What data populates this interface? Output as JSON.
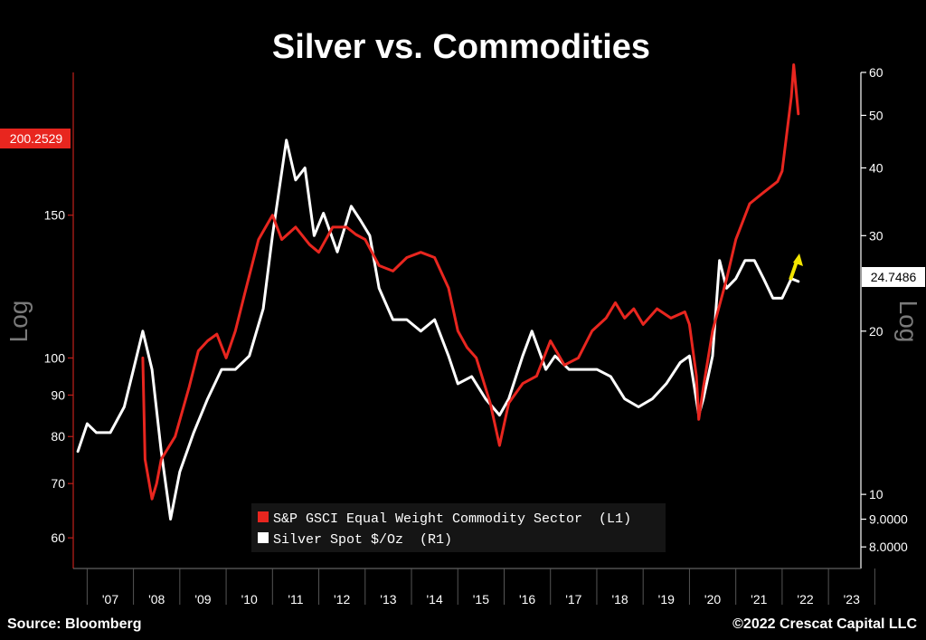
{
  "chart_data": {
    "type": "line",
    "title": "Silver vs. Commodities",
    "source": "Source: Bloomberg",
    "copyright": "©2022 Crescat Capital LLC",
    "left_axis": {
      "label": "Log",
      "scale": "log",
      "range": [
        55,
        225
      ],
      "ticks": [
        {
          "value": 150,
          "label": "150"
        },
        {
          "value": 100,
          "label": "100"
        },
        {
          "value": 90,
          "label": "90"
        },
        {
          "value": 80,
          "label": "80"
        },
        {
          "value": 70,
          "label": "70"
        },
        {
          "value": 60,
          "label": "60"
        }
      ]
    },
    "right_axis": {
      "label": "Log",
      "scale": "log",
      "range": [
        7.3,
        60
      ],
      "ticks": [
        {
          "value": 60,
          "label": "60"
        },
        {
          "value": 50,
          "label": "50"
        },
        {
          "value": 40,
          "label": "40"
        },
        {
          "value": 30,
          "label": "30"
        },
        {
          "value": 20,
          "label": "20"
        },
        {
          "value": 10,
          "label": "10"
        },
        {
          "value": 9,
          "label": "9.0000"
        },
        {
          "value": 8,
          "label": "8.0000"
        }
      ]
    },
    "x_axis": {
      "range": [
        2006.7,
        2023.7
      ],
      "tick_labels": [
        "'07",
        "'08",
        "'09",
        "'10",
        "'11",
        "'12",
        "'13",
        "'14",
        "'15",
        "'16",
        "'17",
        "'18",
        "'19",
        "'20",
        "'21",
        "'22",
        "'23"
      ]
    },
    "last_value_labels": {
      "left": "200.2529",
      "right": "24.7486"
    },
    "legend": {
      "placement": "bottom-center",
      "items": [
        {
          "label": "S&P GSCI Equal Weight Commodity Sector  (L1)",
          "color": "#e8261f"
        },
        {
          "label": "Silver Spot $/Oz  (R1)",
          "color": "#ffffff"
        }
      ]
    },
    "series": [
      {
        "name": "S&P GSCI Equal Weight Commodity Sector  (L1)",
        "axis": "left",
        "color": "#e8261f",
        "points": [
          [
            2008.2,
            100
          ],
          [
            2008.25,
            75
          ],
          [
            2008.4,
            67
          ],
          [
            2008.5,
            70
          ],
          [
            2008.6,
            75
          ],
          [
            2008.9,
            80
          ],
          [
            2009.2,
            92
          ],
          [
            2009.4,
            102
          ],
          [
            2009.6,
            105
          ],
          [
            2009.8,
            107
          ],
          [
            2010.0,
            100
          ],
          [
            2010.2,
            108
          ],
          [
            2010.4,
            120
          ],
          [
            2010.7,
            140
          ],
          [
            2011.0,
            150
          ],
          [
            2011.2,
            140
          ],
          [
            2011.5,
            145
          ],
          [
            2011.8,
            138
          ],
          [
            2012.0,
            135
          ],
          [
            2012.3,
            145
          ],
          [
            2012.6,
            145
          ],
          [
            2012.8,
            142
          ],
          [
            2013.0,
            140
          ],
          [
            2013.3,
            130
          ],
          [
            2013.6,
            128
          ],
          [
            2013.9,
            133
          ],
          [
            2014.2,
            135
          ],
          [
            2014.5,
            133
          ],
          [
            2014.8,
            122
          ],
          [
            2015.0,
            108
          ],
          [
            2015.2,
            103
          ],
          [
            2015.4,
            100
          ],
          [
            2015.7,
            88
          ],
          [
            2015.9,
            78
          ],
          [
            2016.1,
            88
          ],
          [
            2016.4,
            93
          ],
          [
            2016.7,
            95
          ],
          [
            2017.0,
            105
          ],
          [
            2017.3,
            98
          ],
          [
            2017.6,
            100
          ],
          [
            2017.9,
            108
          ],
          [
            2018.2,
            112
          ],
          [
            2018.4,
            117
          ],
          [
            2018.6,
            112
          ],
          [
            2018.8,
            115
          ],
          [
            2019.0,
            110
          ],
          [
            2019.3,
            115
          ],
          [
            2019.6,
            112
          ],
          [
            2019.9,
            114
          ],
          [
            2020.0,
            110
          ],
          [
            2020.15,
            95
          ],
          [
            2020.2,
            84
          ],
          [
            2020.3,
            92
          ],
          [
            2020.5,
            108
          ],
          [
            2020.8,
            125
          ],
          [
            2021.0,
            140
          ],
          [
            2021.3,
            155
          ],
          [
            2021.6,
            160
          ],
          [
            2021.9,
            165
          ],
          [
            2022.0,
            170
          ],
          [
            2022.2,
            210
          ],
          [
            2022.25,
            230
          ],
          [
            2022.35,
            200
          ]
        ]
      },
      {
        "name": "Silver Spot $/Oz  (R1)",
        "axis": "right",
        "color": "#ffffff",
        "points": [
          [
            2006.8,
            12
          ],
          [
            2007.0,
            13.5
          ],
          [
            2007.2,
            13
          ],
          [
            2007.5,
            13
          ],
          [
            2007.8,
            14.5
          ],
          [
            2008.0,
            17
          ],
          [
            2008.2,
            20
          ],
          [
            2008.4,
            17
          ],
          [
            2008.6,
            12
          ],
          [
            2008.8,
            9
          ],
          [
            2009.0,
            11
          ],
          [
            2009.3,
            13
          ],
          [
            2009.6,
            15
          ],
          [
            2009.9,
            17
          ],
          [
            2010.2,
            17
          ],
          [
            2010.5,
            18
          ],
          [
            2010.8,
            22
          ],
          [
            2011.0,
            30
          ],
          [
            2011.3,
            45
          ],
          [
            2011.5,
            38
          ],
          [
            2011.7,
            40
          ],
          [
            2011.9,
            30
          ],
          [
            2012.1,
            33
          ],
          [
            2012.4,
            28
          ],
          [
            2012.7,
            34
          ],
          [
            2012.9,
            32
          ],
          [
            2013.1,
            30
          ],
          [
            2013.3,
            24
          ],
          [
            2013.6,
            21
          ],
          [
            2013.9,
            21
          ],
          [
            2014.2,
            20
          ],
          [
            2014.5,
            21
          ],
          [
            2014.8,
            18
          ],
          [
            2015.0,
            16
          ],
          [
            2015.3,
            16.5
          ],
          [
            2015.6,
            15
          ],
          [
            2015.9,
            14
          ],
          [
            2016.1,
            15
          ],
          [
            2016.4,
            18
          ],
          [
            2016.6,
            20
          ],
          [
            2016.9,
            17
          ],
          [
            2017.1,
            18
          ],
          [
            2017.4,
            17
          ],
          [
            2017.7,
            17
          ],
          [
            2018.0,
            17
          ],
          [
            2018.3,
            16.5
          ],
          [
            2018.6,
            15
          ],
          [
            2018.9,
            14.5
          ],
          [
            2019.2,
            15
          ],
          [
            2019.5,
            16
          ],
          [
            2019.8,
            17.5
          ],
          [
            2020.0,
            18
          ],
          [
            2020.2,
            14
          ],
          [
            2020.3,
            15
          ],
          [
            2020.5,
            18
          ],
          [
            2020.65,
            27
          ],
          [
            2020.8,
            24
          ],
          [
            2021.0,
            25
          ],
          [
            2021.2,
            27
          ],
          [
            2021.4,
            27
          ],
          [
            2021.6,
            25
          ],
          [
            2021.8,
            23
          ],
          [
            2022.0,
            23
          ],
          [
            2022.2,
            25
          ],
          [
            2022.35,
            24.7
          ]
        ]
      }
    ]
  }
}
